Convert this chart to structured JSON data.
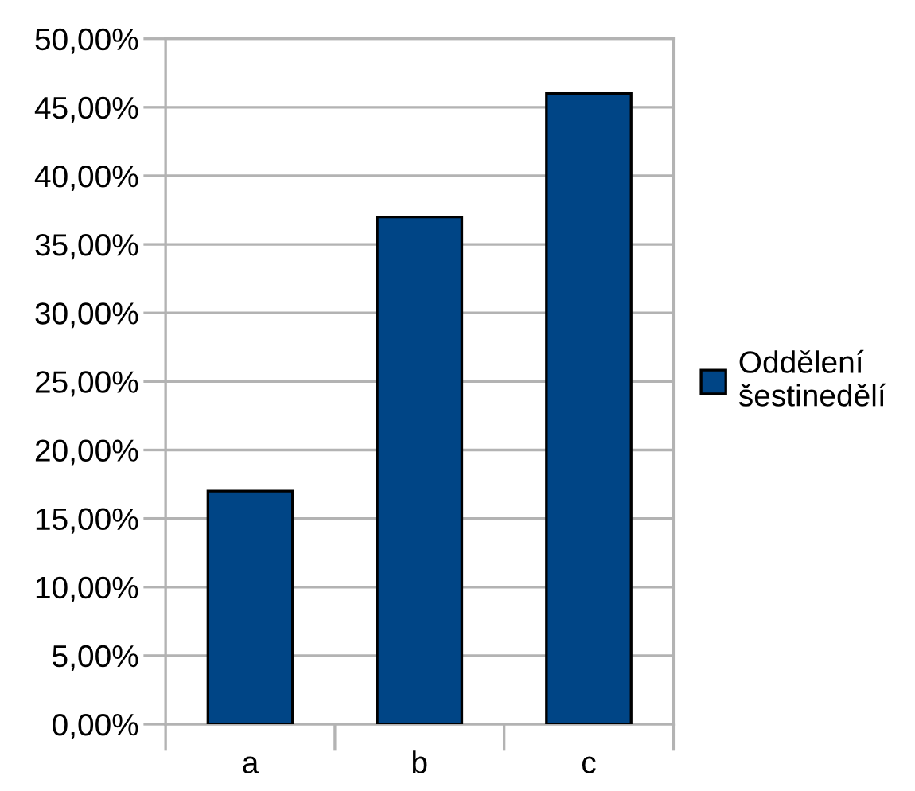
{
  "chart_data": {
    "type": "bar",
    "categories": [
      "a",
      "b",
      "c"
    ],
    "series": [
      {
        "name": "Oddělení šestinedělí",
        "color": "#004586",
        "values": [
          17,
          37,
          46
        ]
      }
    ],
    "ylim": [
      0,
      50
    ],
    "yticks": [
      {
        "value": 0,
        "label": "0,00%"
      },
      {
        "value": 5,
        "label": "5,00%"
      },
      {
        "value": 10,
        "label": "10,00%"
      },
      {
        "value": 15,
        "label": "15,00%"
      },
      {
        "value": 20,
        "label": "20,00%"
      },
      {
        "value": 25,
        "label": "25,00%"
      },
      {
        "value": 30,
        "label": "30,00%"
      },
      {
        "value": 35,
        "label": "35,00%"
      },
      {
        "value": 40,
        "label": "40,00%"
      },
      {
        "value": 45,
        "label": "45,00%"
      },
      {
        "value": 50,
        "label": "50,00%"
      }
    ],
    "grid": "y",
    "legend": "right"
  }
}
